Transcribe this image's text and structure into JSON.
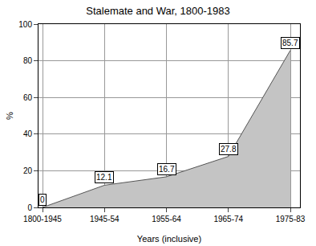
{
  "chart_data": {
    "type": "area",
    "title": "Stalemate and War, 1800-1983",
    "x_label": "Years (inclusive)",
    "y_label": "%",
    "categories": [
      "1800-1945",
      "1945-54",
      "1955-64",
      "1965-74",
      "1975-83"
    ],
    "values": [
      0,
      12.1,
      16.7,
      27.8,
      85.7
    ],
    "color": "#c4c4c4",
    "ylim": [
      0,
      100
    ],
    "yticks": [
      0,
      20,
      40,
      60,
      80,
      100
    ],
    "grid": true,
    "data_labels": true
  }
}
